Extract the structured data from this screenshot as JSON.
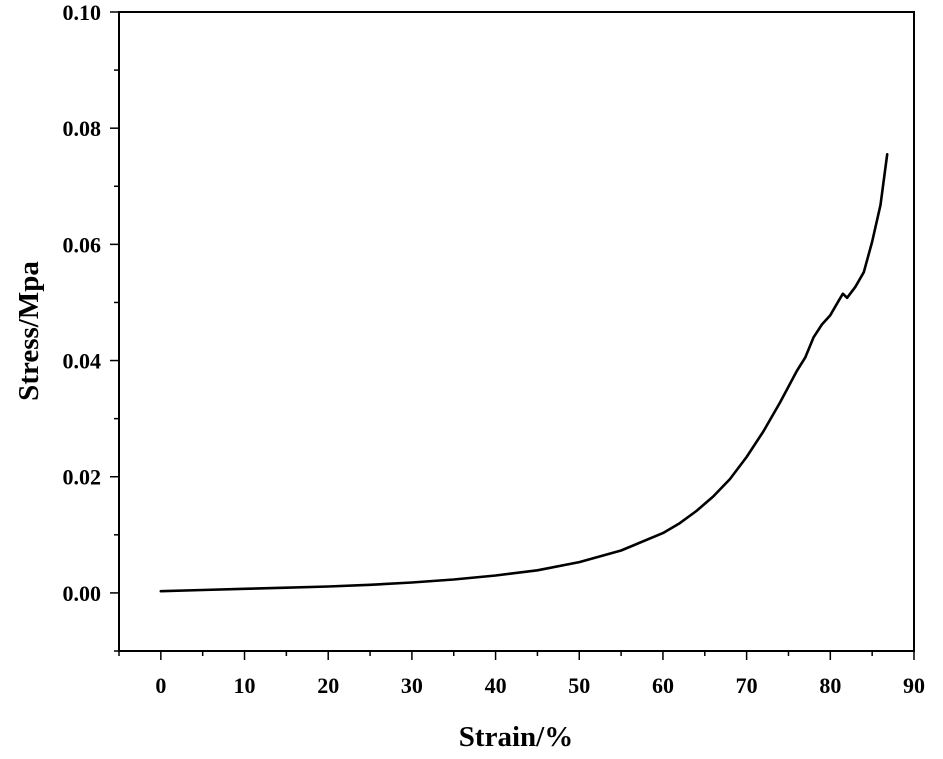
{
  "chart_data": {
    "type": "line",
    "title": "",
    "xlabel": "Strain/%",
    "ylabel": "Stress/Mpa",
    "xlim": [
      -5,
      90
    ],
    "ylim": [
      -0.01,
      0.1
    ],
    "grid": false,
    "legend": "none",
    "x_ticks": [
      0,
      10,
      20,
      30,
      40,
      50,
      60,
      70,
      80,
      90
    ],
    "x_tick_labels": [
      "0",
      "10",
      "20",
      "30",
      "40",
      "50",
      "60",
      "70",
      "80",
      "90"
    ],
    "y_ticks": [
      0.0,
      0.02,
      0.04,
      0.06,
      0.08,
      0.1
    ],
    "y_tick_labels": [
      "0.00",
      "0.02",
      "0.04",
      "0.06",
      "0.08",
      "0.10"
    ],
    "series": [
      {
        "color": "#000000",
        "x": [
          0,
          5,
          10,
          15,
          20,
          25,
          30,
          35,
          40,
          45,
          50,
          55,
          60,
          62,
          64,
          66,
          68,
          70,
          72,
          74,
          76,
          77,
          78,
          79,
          80,
          81,
          81.5,
          82,
          83,
          84,
          85,
          86,
          86.8
        ],
        "y": [
          0.0003,
          0.0005,
          0.0007,
          0.0009,
          0.0011,
          0.0014,
          0.0018,
          0.0023,
          0.003,
          0.0039,
          0.0053,
          0.0073,
          0.0103,
          0.012,
          0.0141,
          0.0166,
          0.0196,
          0.0234,
          0.0278,
          0.0328,
          0.0382,
          0.0405,
          0.044,
          0.0462,
          0.0478,
          0.0503,
          0.0515,
          0.0508,
          0.0527,
          0.0552,
          0.0605,
          0.0668,
          0.0755
        ]
      }
    ]
  }
}
